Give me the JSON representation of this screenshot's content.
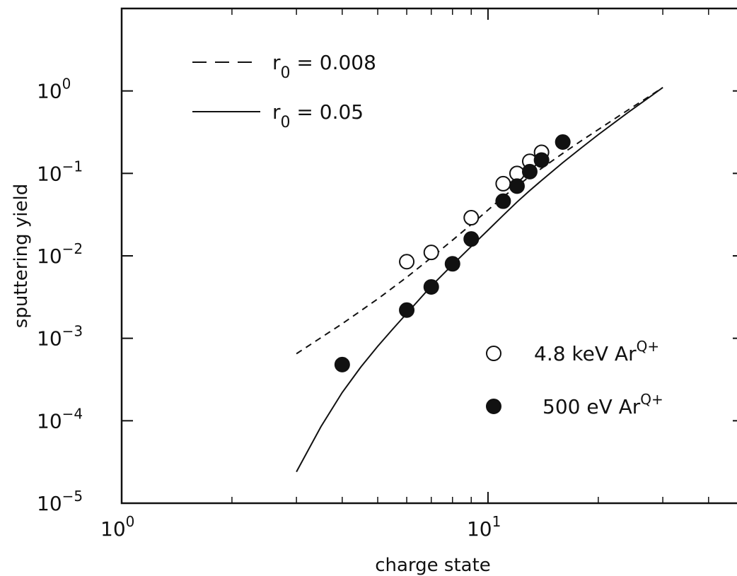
{
  "chart_data": {
    "type": "scatter",
    "title": "",
    "xlabel": "charge state",
    "ylabel": "sputtering yield",
    "xscale": "log",
    "yscale": "log",
    "xlim": [
      1,
      50
    ],
    "ylim": [
      1e-05,
      10
    ],
    "grid": false,
    "x_ticks": [
      {
        "value": 1,
        "base": "10",
        "exp": "0"
      },
      {
        "value": 10,
        "base": "10",
        "exp": "1"
      }
    ],
    "y_ticks": [
      {
        "value": 1,
        "base": "10",
        "exp": "0"
      },
      {
        "value": 0.1,
        "base": "10",
        "exp": "−1"
      },
      {
        "value": 0.01,
        "base": "10",
        "exp": "−2"
      },
      {
        "value": 0.001,
        "base": "10",
        "exp": "−3"
      },
      {
        "value": 0.0001,
        "base": "10",
        "exp": "−4"
      },
      {
        "value": 1e-05,
        "base": "10",
        "exp": "−5"
      }
    ],
    "lines": [
      {
        "label_main": "r",
        "label_sub": "0",
        "label_rest": " = 0.008",
        "style": "dashed",
        "x": [
          3,
          4,
          5,
          6,
          7,
          8,
          9,
          10,
          11,
          12,
          13,
          14,
          16,
          18,
          20,
          24,
          28,
          30
        ],
        "y": [
          0.00065,
          0.0015,
          0.003,
          0.0055,
          0.0095,
          0.0155,
          0.024,
          0.036,
          0.052,
          0.07,
          0.092,
          0.115,
          0.175,
          0.25,
          0.34,
          0.58,
          0.9,
          1.1
        ]
      },
      {
        "label_main": "r",
        "label_sub": "0",
        "label_rest": " = 0.05",
        "style": "solid",
        "x": [
          3,
          3.5,
          4,
          4.5,
          5,
          5.5,
          6,
          7,
          8,
          9,
          10,
          11,
          12,
          13,
          14,
          16,
          18,
          20,
          24,
          28,
          30
        ],
        "y": [
          2.4e-05,
          8.5e-05,
          0.00022,
          0.00045,
          0.0008,
          0.0013,
          0.002,
          0.0043,
          0.0078,
          0.013,
          0.0205,
          0.031,
          0.045,
          0.062,
          0.082,
          0.135,
          0.205,
          0.295,
          0.54,
          0.88,
          1.1
        ]
      }
    ],
    "series": [
      {
        "name_main": "4.8 keV Ar",
        "name_sup": "Q+",
        "marker": "open-circle",
        "x": [
          6,
          7,
          9,
          11,
          12,
          13,
          14
        ],
        "y": [
          0.0085,
          0.011,
          0.029,
          0.075,
          0.1,
          0.14,
          0.18
        ]
      },
      {
        "name_main": "500 eV Ar",
        "name_sup": "Q+",
        "marker": "filled-circle",
        "x": [
          4,
          6,
          7,
          8,
          9,
          11,
          12,
          13,
          14,
          16
        ],
        "y": [
          0.00048,
          0.0022,
          0.0042,
          0.008,
          0.016,
          0.046,
          0.07,
          0.105,
          0.145,
          0.24
        ]
      }
    ]
  }
}
